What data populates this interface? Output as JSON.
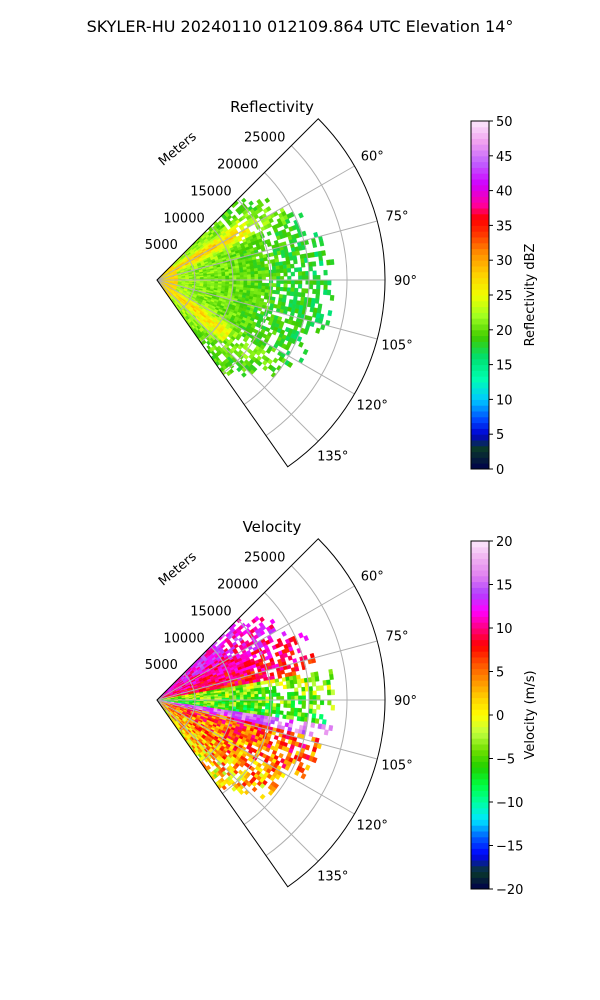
{
  "suptitle": "SKYLER-HU  20240110  012109.864 UTC Elevation 14°",
  "chart_data": [
    {
      "type": "polar-sector-heatmap",
      "title": "Reflectivity",
      "range_axis_label": "Meters",
      "range_ticks": [
        5000,
        10000,
        15000,
        20000,
        25000
      ],
      "range_tick_labels": [
        "5000",
        "10000",
        "15000",
        "20000",
        "25000"
      ],
      "range_max_m": 30000,
      "data_extent_m": 23000,
      "azimuth_range_deg": [
        45,
        145
      ],
      "azimuth_ticks": [
        60,
        75,
        90,
        105,
        120,
        135
      ],
      "azimuth_tick_labels": [
        "60°",
        "75°",
        "90°",
        "105°",
        "120°",
        "135°"
      ],
      "colorbar": {
        "label": "Reflectivity dBZ",
        "range": [
          0,
          50
        ],
        "ticks": [
          0,
          5,
          10,
          15,
          20,
          25,
          30,
          35,
          40,
          45,
          50
        ],
        "tick_labels": [
          "0",
          "5",
          "10",
          "15",
          "20",
          "25",
          "30",
          "35",
          "40",
          "45",
          "50"
        ],
        "stops": [
          [
            0,
            "#00004a"
          ],
          [
            3,
            "#0a3a2a"
          ],
          [
            5,
            "#0000d0"
          ],
          [
            7,
            "#0044ff"
          ],
          [
            10,
            "#00c8ff"
          ],
          [
            13,
            "#00ffb0"
          ],
          [
            16,
            "#00e070"
          ],
          [
            19,
            "#40cc00"
          ],
          [
            22,
            "#a0ff20"
          ],
          [
            25,
            "#f0ff00"
          ],
          [
            28,
            "#ffd000"
          ],
          [
            31,
            "#ff9000"
          ],
          [
            34,
            "#ff3000"
          ],
          [
            36,
            "#ff0000"
          ],
          [
            38,
            "#ff00a0"
          ],
          [
            41,
            "#d000ff"
          ],
          [
            44,
            "#c060ff"
          ],
          [
            47,
            "#f0a0f0"
          ],
          [
            50,
            "#fce8fc"
          ]
        ]
      }
    },
    {
      "type": "polar-sector-heatmap",
      "title": "Velocity",
      "range_axis_label": "Meters",
      "range_ticks": [
        5000,
        10000,
        15000,
        20000,
        25000
      ],
      "range_tick_labels": [
        "5000",
        "10000",
        "15000",
        "20000",
        "25000"
      ],
      "range_max_m": 30000,
      "data_extent_m": 23000,
      "azimuth_range_deg": [
        45,
        145
      ],
      "azimuth_ticks": [
        60,
        75,
        90,
        105,
        120,
        135
      ],
      "azimuth_tick_labels": [
        "60°",
        "75°",
        "90°",
        "105°",
        "120°",
        "135°"
      ],
      "colorbar": {
        "label": "Velocity (m/s)",
        "range": [
          -20,
          20
        ],
        "ticks": [
          -20,
          -15,
          -10,
          -5,
          0,
          5,
          10,
          15,
          20
        ],
        "tick_labels": [
          "−20",
          "−15",
          "−10",
          "−5",
          "0",
          "5",
          "10",
          "15",
          "20"
        ],
        "stops": [
          [
            -20,
            "#00004a"
          ],
          [
            -18,
            "#0a3a2a"
          ],
          [
            -16,
            "#0000ff"
          ],
          [
            -14,
            "#0060ff"
          ],
          [
            -12,
            "#00e8ff"
          ],
          [
            -10,
            "#00ffa0"
          ],
          [
            -8,
            "#00ff40"
          ],
          [
            -6,
            "#20d000"
          ],
          [
            -4,
            "#70e000"
          ],
          [
            -2,
            "#c0ff40"
          ],
          [
            0,
            "#ffff00"
          ],
          [
            2,
            "#ffd000"
          ],
          [
            4,
            "#ff9000"
          ],
          [
            6,
            "#ff5000"
          ],
          [
            8,
            "#ff0000"
          ],
          [
            10,
            "#ff0080"
          ],
          [
            12,
            "#ff00ff"
          ],
          [
            14,
            "#b040ff"
          ],
          [
            16,
            "#e080f0"
          ],
          [
            18,
            "#f0b0f0"
          ],
          [
            20,
            "#fce8fc"
          ]
        ]
      }
    }
  ]
}
